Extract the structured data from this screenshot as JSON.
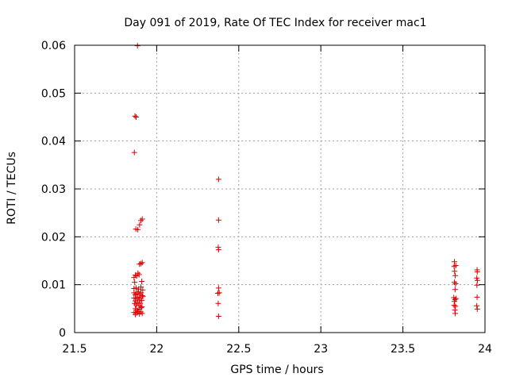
{
  "chart_data": {
    "type": "scatter",
    "title": "Day 091 of 2019, Rate Of TEC Index for receiver mac1",
    "xlabel": "GPS time / hours",
    "ylabel": "ROTI / TECUs",
    "xlim": [
      21.5,
      24
    ],
    "ylim": [
      0,
      0.06
    ],
    "grid": true,
    "marker": "+",
    "color": "#dd0000",
    "xticks": [
      {
        "value": 21.5,
        "label": "21.5"
      },
      {
        "value": 22,
        "label": "22"
      },
      {
        "value": 22.5,
        "label": "22.5"
      },
      {
        "value": 23,
        "label": "23"
      },
      {
        "value": 23.5,
        "label": "23.5"
      },
      {
        "value": 24,
        "label": "24"
      }
    ],
    "yticks": [
      {
        "value": 0,
        "label": "0"
      },
      {
        "value": 0.01,
        "label": "0.01"
      },
      {
        "value": 0.02,
        "label": "0.02"
      },
      {
        "value": 0.03,
        "label": "0.03"
      },
      {
        "value": 0.04,
        "label": "0.04"
      },
      {
        "value": 0.05,
        "label": "0.05"
      },
      {
        "value": 0.06,
        "label": "0.06"
      }
    ],
    "points": [
      [
        21.883,
        0.0599
      ],
      [
        21.868,
        0.0452
      ],
      [
        21.875,
        0.045
      ],
      [
        21.864,
        0.0376
      ],
      [
        21.873,
        0.0216
      ],
      [
        21.885,
        0.0215
      ],
      [
        21.896,
        0.0225
      ],
      [
        21.904,
        0.0234
      ],
      [
        21.912,
        0.0237
      ],
      [
        21.895,
        0.0143
      ],
      [
        21.904,
        0.0144
      ],
      [
        21.912,
        0.0146
      ],
      [
        21.862,
        0.0115
      ],
      [
        21.87,
        0.012
      ],
      [
        21.878,
        0.0118
      ],
      [
        21.886,
        0.0124
      ],
      [
        21.893,
        0.0121
      ],
      [
        21.909,
        0.0107
      ],
      [
        21.866,
        0.0105
      ],
      [
        21.862,
        0.0092
      ],
      [
        21.875,
        0.0093
      ],
      [
        21.889,
        0.0091
      ],
      [
        21.904,
        0.0095
      ],
      [
        21.915,
        0.0089
      ],
      [
        21.862,
        0.0083
      ],
      [
        21.87,
        0.0079
      ],
      [
        21.878,
        0.0081
      ],
      [
        21.886,
        0.0085
      ],
      [
        21.895,
        0.008
      ],
      [
        21.904,
        0.0083
      ],
      [
        21.912,
        0.0077
      ],
      [
        21.862,
        0.0072
      ],
      [
        21.87,
        0.0066
      ],
      [
        21.878,
        0.0071
      ],
      [
        21.886,
        0.0074
      ],
      [
        21.893,
        0.0068
      ],
      [
        21.901,
        0.0072
      ],
      [
        21.909,
        0.0067
      ],
      [
        21.916,
        0.0075
      ],
      [
        21.866,
        0.0061
      ],
      [
        21.875,
        0.0058
      ],
      [
        21.883,
        0.0063
      ],
      [
        21.892,
        0.0056
      ],
      [
        21.9,
        0.0061
      ],
      [
        21.91,
        0.0054
      ],
      [
        21.87,
        0.005
      ],
      [
        21.881,
        0.0047
      ],
      [
        21.893,
        0.0049
      ],
      [
        21.905,
        0.0052
      ],
      [
        21.862,
        0.0042
      ],
      [
        21.87,
        0.0038
      ],
      [
        21.878,
        0.0041
      ],
      [
        21.886,
        0.0044
      ],
      [
        21.895,
        0.0039
      ],
      [
        21.904,
        0.0043
      ],
      [
        21.912,
        0.004
      ],
      [
        22.377,
        0.032
      ],
      [
        22.377,
        0.0235
      ],
      [
        22.375,
        0.0178
      ],
      [
        22.377,
        0.0173
      ],
      [
        22.377,
        0.0093
      ],
      [
        22.373,
        0.0082
      ],
      [
        22.381,
        0.0083
      ],
      [
        22.375,
        0.0061
      ],
      [
        22.377,
        0.0034
      ],
      [
        23.814,
        0.0148
      ],
      [
        23.812,
        0.0138
      ],
      [
        23.822,
        0.014
      ],
      [
        23.815,
        0.0128
      ],
      [
        23.819,
        0.0119
      ],
      [
        23.814,
        0.0105
      ],
      [
        23.821,
        0.0102
      ],
      [
        23.818,
        0.009
      ],
      [
        23.81,
        0.0073
      ],
      [
        23.817,
        0.0069
      ],
      [
        23.824,
        0.0071
      ],
      [
        23.814,
        0.0065
      ],
      [
        23.812,
        0.0057
      ],
      [
        23.82,
        0.0055
      ],
      [
        23.817,
        0.0047
      ],
      [
        23.819,
        0.004
      ],
      [
        23.952,
        0.0131
      ],
      [
        23.953,
        0.0127
      ],
      [
        23.95,
        0.0114
      ],
      [
        23.954,
        0.0109
      ],
      [
        23.951,
        0.0099
      ],
      [
        23.952,
        0.0074
      ],
      [
        23.95,
        0.0056
      ],
      [
        23.953,
        0.0049
      ]
    ]
  }
}
